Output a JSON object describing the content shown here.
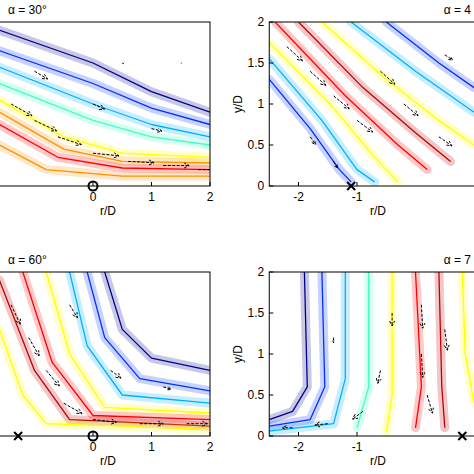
{
  "chart_data": [
    {
      "type": "contour",
      "title": "α = 30°",
      "xlabel": "r/D",
      "xlim": [
        -2.5,
        2
      ],
      "ylim": [
        0,
        2
      ],
      "xticks": [
        0,
        1,
        2
      ],
      "yticks": [
        0,
        0.5,
        1,
        1.5,
        2
      ],
      "tick_labels": "x",
      "series": [
        {
          "color": "#00008f",
          "x": [
            -1.6,
            0,
            1,
            2
          ],
          "y": [
            1.9,
            1.5,
            1.15,
            0.9
          ]
        },
        {
          "color": "#0030ff",
          "x": [
            -1.6,
            0,
            1,
            2
          ],
          "y": [
            1.65,
            1.25,
            0.95,
            0.75
          ]
        },
        {
          "color": "#00b0ff",
          "x": [
            -1.6,
            0,
            1,
            2
          ],
          "y": [
            1.45,
            1.0,
            0.75,
            0.6
          ]
        },
        {
          "color": "#40ffc0",
          "x": [
            -1.6,
            0,
            1,
            2
          ],
          "y": [
            1.25,
            0.8,
            0.6,
            0.5
          ]
        },
        {
          "color": "#ffff00",
          "x": [
            -1.6,
            -0.5,
            0.5,
            2
          ],
          "y": [
            1.05,
            0.6,
            0.4,
            0.35
          ]
        },
        {
          "color": "#ff9000",
          "x": [
            -1.6,
            -0.5,
            0.5,
            2
          ],
          "y": [
            0.9,
            0.45,
            0.3,
            0.28
          ]
        },
        {
          "color": "#ff0000",
          "x": [
            -1.6,
            -0.6,
            0.5,
            2
          ],
          "y": [
            0.75,
            0.35,
            0.22,
            0.2
          ]
        },
        {
          "color": "#ff9000",
          "x": [
            -1.6,
            -0.8,
            0.5,
            2
          ],
          "y": [
            0.5,
            0.2,
            0.12,
            0.12
          ]
        }
      ],
      "vectors": {
        "x": [
          -1.4,
          -1,
          -0.6,
          0,
          0.6,
          1.2,
          1.8,
          -1,
          0,
          1,
          0.5,
          1.5
        ],
        "y": [
          1.0,
          0.8,
          0.6,
          0.4,
          0.3,
          0.25,
          0.2,
          1.4,
          1.0,
          0.7,
          1.5,
          1.5
        ],
        "u": [
          0.8,
          0.85,
          0.9,
          1,
          1,
          1,
          1,
          0.5,
          0.45,
          0.4,
          0.05,
          0.02
        ],
        "v": [
          -0.45,
          -0.4,
          -0.3,
          -0.1,
          -0.05,
          0,
          0,
          -0.3,
          -0.2,
          -0.1,
          -0.02,
          0
        ]
      },
      "points": [
        {
          "x": 0,
          "y": 0,
          "marker": "circle"
        }
      ]
    },
    {
      "type": "contour",
      "title": "α = 4",
      "xlabel": "r/D",
      "ylabel": "y/D",
      "xlim": [
        -2.5,
        2
      ],
      "ylim": [
        0,
        2
      ],
      "xticks": [
        -2,
        -1
      ],
      "yticks": [
        0,
        0.5,
        1,
        1.5,
        2
      ],
      "series": [
        {
          "color": "#0030ff",
          "x": [
            -2.5,
            -1.8,
            -1.3,
            -1.1
          ],
          "y": [
            1.3,
            0.7,
            0.2,
            0.05
          ]
        },
        {
          "color": "#00b0ff",
          "x": [
            -2.5,
            -1.6,
            -1.0,
            -0.7
          ],
          "y": [
            1.55,
            0.8,
            0.2,
            0.05
          ]
        },
        {
          "color": "#ffff00",
          "x": [
            -2.5,
            -1.4,
            -0.7,
            -0.3
          ],
          "y": [
            1.75,
            0.95,
            0.35,
            0.05
          ]
        },
        {
          "color": "#ff0000",
          "x": [
            -2.4,
            -1.2,
            -0.3,
            0.2
          ],
          "y": [
            2,
            1.1,
            0.5,
            0.2
          ]
        },
        {
          "color": "#c00000",
          "x": [
            -2.0,
            -0.9,
            0,
            0.6
          ],
          "y": [
            2,
            1.2,
            0.65,
            0.3
          ]
        },
        {
          "color": "#ffff00",
          "x": [
            -1.6,
            -0.5,
            0.4,
            1
          ],
          "y": [
            2,
            1.3,
            0.8,
            0.5
          ]
        },
        {
          "color": "#00b0ff",
          "x": [
            -1.1,
            0,
            1
          ],
          "y": [
            2,
            1.4,
            0.9
          ]
        },
        {
          "color": "#0030ff",
          "x": [
            -0.5,
            0.4,
            1
          ],
          "y": [
            2,
            1.5,
            1.2
          ]
        }
      ],
      "vectors": {
        "x": [
          -2.2,
          -1.8,
          -1.4,
          -1.0,
          -0.6,
          -0.2,
          0.4,
          -1.8,
          -1.4,
          0.5
        ],
        "y": [
          1.7,
          1.4,
          1.1,
          0.8,
          1.4,
          1.0,
          0.6,
          0.6,
          0.3,
          1.6
        ],
        "u": [
          0.6,
          0.6,
          0.6,
          0.6,
          0.55,
          0.55,
          0.5,
          0.2,
          0.15,
          0.3
        ],
        "v": [
          -0.55,
          -0.55,
          -0.5,
          -0.45,
          -0.5,
          -0.45,
          -0.35,
          -0.3,
          -0.25,
          -0.2
        ]
      },
      "points": [
        {
          "x": -1.1,
          "y": 0,
          "marker": "x"
        }
      ]
    },
    {
      "type": "contour",
      "title": "α = 60°",
      "xlabel": "r/D",
      "xlim": [
        -2.5,
        2
      ],
      "ylim": [
        0,
        2
      ],
      "xticks": [
        0,
        1,
        2
      ],
      "yticks": [
        0,
        0.5,
        1,
        1.5,
        2
      ],
      "tick_labels": "x",
      "series": [
        {
          "color": "#00008f",
          "x": [
            0.2,
            0.5,
            1.0,
            2
          ],
          "y": [
            2,
            1.3,
            0.95,
            0.8
          ]
        },
        {
          "color": "#0030ff",
          "x": [
            -0.1,
            0.2,
            0.8,
            2
          ],
          "y": [
            2,
            1.2,
            0.7,
            0.55
          ]
        },
        {
          "color": "#00b0ff",
          "x": [
            -0.4,
            -0.1,
            0.5,
            2
          ],
          "y": [
            2,
            1.1,
            0.5,
            0.4
          ]
        },
        {
          "color": "#ffff00",
          "x": [
            -0.8,
            -0.4,
            0.2,
            2
          ],
          "y": [
            2,
            1.0,
            0.35,
            0.28
          ]
        },
        {
          "color": "#ff0000",
          "x": [
            -1.2,
            -0.7,
            0,
            2
          ],
          "y": [
            2,
            0.9,
            0.25,
            0.2
          ]
        },
        {
          "color": "#c00000",
          "x": [
            -1.6,
            -1.0,
            -0.4,
            2
          ],
          "y": [
            1.9,
            0.8,
            0.2,
            0.12
          ]
        },
        {
          "color": "#ffff00",
          "x": [
            -1.6,
            -1.2,
            -0.8,
            2
          ],
          "y": [
            1.3,
            0.5,
            0.15,
            0.08
          ]
        }
      ],
      "vectors": {
        "x": [
          -1.4,
          -1.1,
          -0.8,
          -0.5,
          0,
          0.8,
          1.6,
          -0.4,
          0.3,
          1.2
        ],
        "y": [
          1.6,
          1.2,
          0.8,
          0.4,
          0.2,
          0.15,
          0.15,
          1.6,
          0.8,
          0.6
        ],
        "u": [
          0.35,
          0.4,
          0.5,
          0.7,
          0.9,
          0.9,
          0.8,
          0.3,
          0.4,
          0.3
        ],
        "v": [
          -0.75,
          -0.7,
          -0.6,
          -0.4,
          -0.1,
          0,
          0,
          -0.5,
          -0.3,
          -0.1
        ]
      },
      "points": [
        {
          "x": -1.28,
          "y": 0,
          "marker": "x"
        },
        {
          "x": 0,
          "y": 0,
          "marker": "circle"
        }
      ]
    },
    {
      "type": "contour",
      "title": "α = 7",
      "xlabel": "r/D",
      "ylabel": "y/D",
      "xlim": [
        -2.5,
        2
      ],
      "ylim": [
        0,
        2
      ],
      "xticks": [
        -2,
        -1
      ],
      "yticks": [
        0,
        0.5,
        1,
        1.5,
        2
      ],
      "series": [
        {
          "color": "#00008f",
          "x": [
            -1.9,
            -1.85,
            -2.1,
            -2.5
          ],
          "y": [
            2,
            0.6,
            0.3,
            0.2
          ]
        },
        {
          "color": "#0030ff",
          "x": [
            -1.6,
            -1.55,
            -1.8,
            -2.5
          ],
          "y": [
            2,
            0.6,
            0.2,
            0.12
          ]
        },
        {
          "color": "#00b0ff",
          "x": [
            -1.2,
            -1.2,
            -1.4,
            -2.5
          ],
          "y": [
            2,
            0.7,
            0.15,
            0.06
          ]
        },
        {
          "color": "#40ffc0",
          "x": [
            -0.8,
            -0.8,
            -1.0
          ],
          "y": [
            2,
            0.6,
            0.1
          ]
        },
        {
          "color": "#ffff00",
          "x": [
            -0.4,
            -0.4,
            -0.5
          ],
          "y": [
            2,
            0.5,
            0.05
          ]
        },
        {
          "color": "#ff0000",
          "x": [
            0.0,
            0.1,
            0.0
          ],
          "y": [
            2,
            0.6,
            0.1
          ]
        },
        {
          "color": "#c00000",
          "x": [
            0.4,
            0.45,
            0.5
          ],
          "y": [
            2,
            0.6,
            0.1
          ]
        },
        {
          "color": "#ffff00",
          "x": [
            0.8,
            0.85,
            1.0
          ],
          "y": [
            2,
            1.0,
            0.4
          ]
        }
      ],
      "vectors": {
        "x": [
          0.1,
          0.1,
          0.2,
          0.5,
          -0.4,
          -0.6,
          -0.9,
          -1.5,
          -2.1,
          -1.4
        ],
        "y": [
          1.6,
          1.0,
          0.5,
          1.3,
          1.5,
          0.8,
          0.3,
          0.15,
          0.1,
          1.2
        ],
        "u": [
          0.05,
          0.05,
          0.2,
          0.1,
          0,
          -0.1,
          -0.4,
          -0.5,
          -0.4,
          0
        ],
        "v": [
          -0.9,
          -0.9,
          -0.7,
          -0.8,
          -0.5,
          -0.5,
          -0.3,
          -0.05,
          0,
          -0.2
        ]
      },
      "points": [
        {
          "x": 0.8,
          "y": 0,
          "marker": "x"
        }
      ]
    }
  ]
}
